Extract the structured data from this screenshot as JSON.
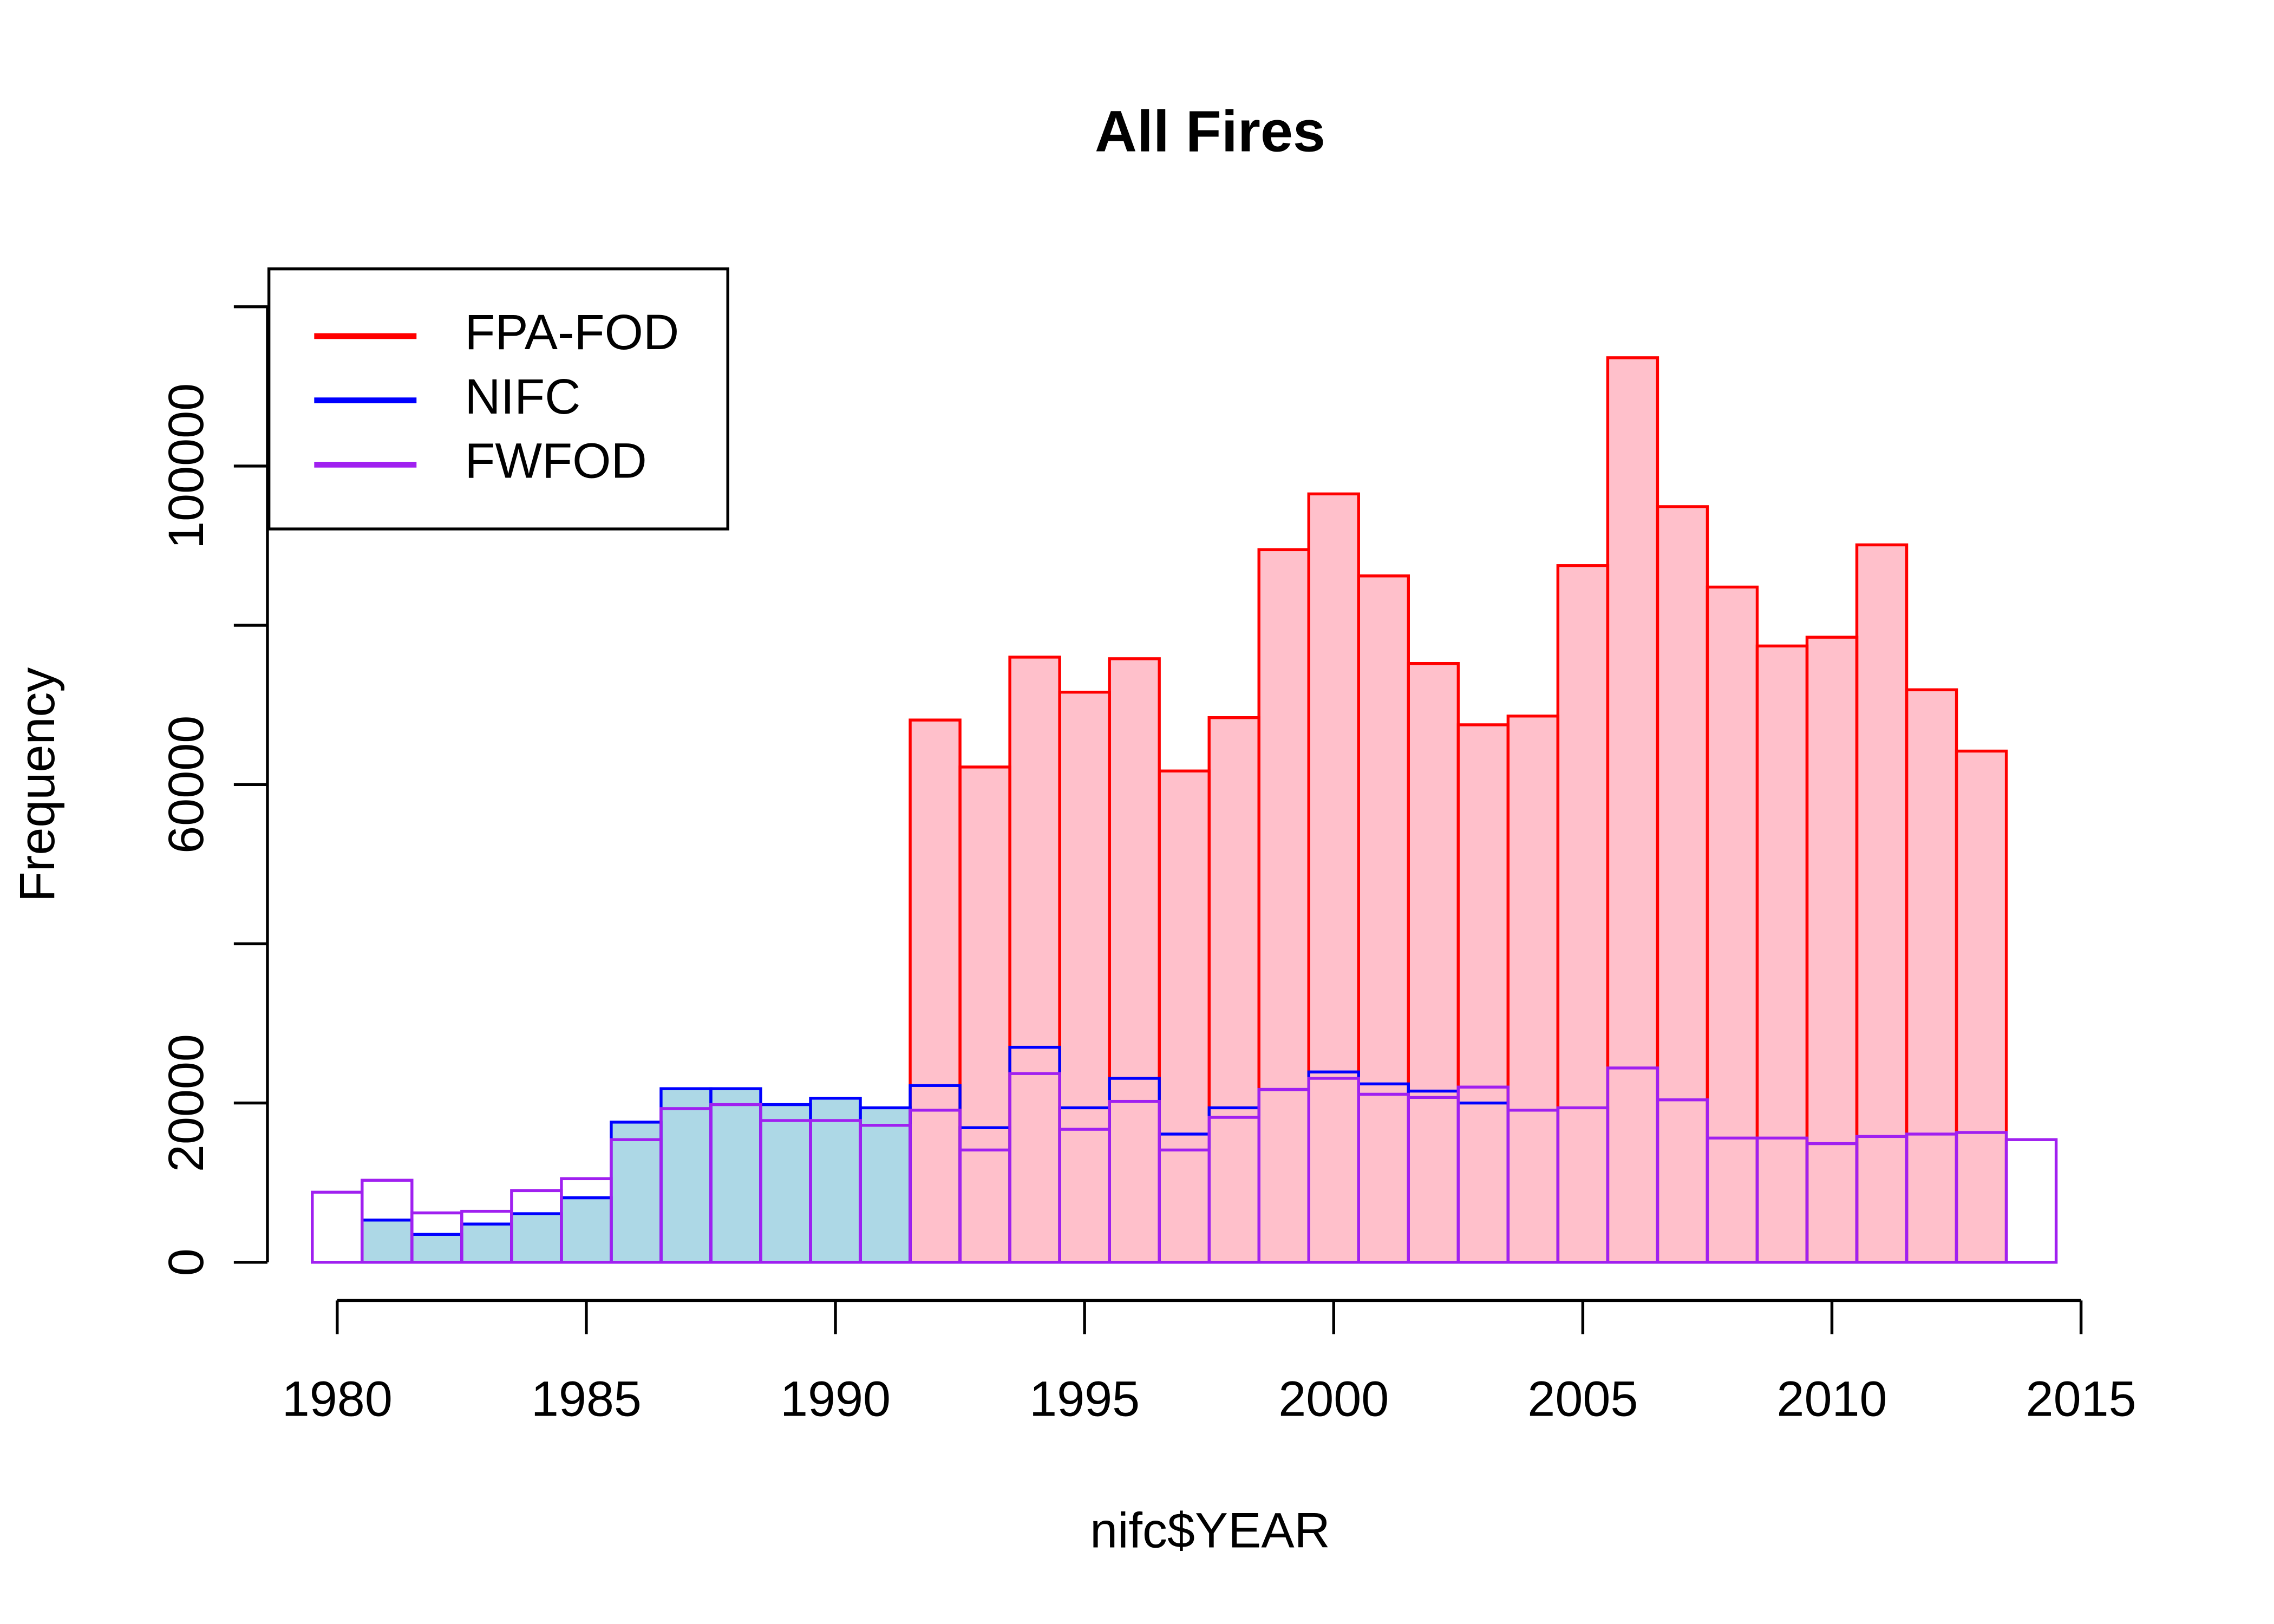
{
  "chart_data": {
    "type": "histogram",
    "title": "All Fires",
    "xlabel": "nifc$YEAR",
    "ylabel": "Frequency",
    "xlim": [
      1978.6,
      2016.4
    ],
    "ylim": [
      -4800,
      124800
    ],
    "xticks": [
      1980,
      1985,
      1990,
      1995,
      2000,
      2005,
      2010,
      2015
    ],
    "yticks": [
      0,
      20000,
      40000,
      60000,
      80000,
      100000,
      120000
    ],
    "legend": "top-left",
    "series": [
      {
        "name": "FWFOD",
        "color": "#a020f0",
        "fill": "#ffffff",
        "bins": [
          1979.5,
          1980.5,
          1981.5,
          1982.5,
          1983.5,
          1984.5,
          1985.5,
          1986.5,
          1987.5,
          1988.5,
          1989.5,
          1990.5,
          1991.5,
          1992.5,
          1993.5,
          1994.5,
          1995.5,
          1996.5,
          1997.5,
          1998.5,
          1999.5,
          2000.5,
          2001.5,
          2002.5,
          2003.5,
          2004.5,
          2005.5,
          2006.5,
          2007.5,
          2008.5,
          2009.5,
          2010.5,
          2011.5,
          2012.5,
          2013.5,
          2014.5
        ],
        "values": [
          8800,
          10300,
          6200,
          6400,
          9000,
          10500,
          15400,
          19300,
          19800,
          17800,
          17800,
          17200,
          19100,
          14100,
          23700,
          16700,
          20200,
          14100,
          18200,
          21700,
          23100,
          21100,
          20700,
          22000,
          19100,
          19400,
          24400,
          20400,
          15600,
          15600,
          14900,
          15800,
          16100,
          16300,
          15400
        ]
      },
      {
        "name": "NIFC",
        "color": "#0000ff",
        "fill": "#add8e6",
        "bins": [
          1979.5,
          1980.5,
          1981.5,
          1982.5,
          1983.5,
          1984.5,
          1985.5,
          1986.5,
          1987.5,
          1988.5,
          1989.5,
          1990.5,
          1991.5,
          1992.5,
          1993.5,
          1994.5,
          1995.5,
          1996.5,
          1997.5,
          1998.5,
          1999.5,
          2000.5,
          2001.5,
          2002.5,
          2003.5,
          2004.5,
          2005.5,
          2006.5,
          2007.5,
          2008.5,
          2009.5,
          2010.5,
          2011.5,
          2012.5,
          2013.5,
          2014.5
        ],
        "values": [
          0,
          5300,
          3500,
          4800,
          6100,
          8100,
          17600,
          21800,
          21800,
          19800,
          20600,
          19400,
          22200,
          16900,
          27000,
          19400,
          23100,
          16100,
          19400,
          21700,
          23900,
          22400,
          21500,
          20000,
          0,
          0,
          0,
          0,
          0,
          0,
          0,
          0,
          0,
          0,
          0
        ]
      },
      {
        "name": "FPA-FOD",
        "color": "#ff0000",
        "fill": "#ffc0cb",
        "bins": [
          1991.5,
          1992.5,
          1993.5,
          1994.5,
          1995.5,
          1996.5,
          1997.5,
          1998.5,
          1999.5,
          2000.5,
          2001.5,
          2002.5,
          2003.5,
          2004.5,
          2005.5,
          2006.5,
          2007.5,
          2008.5,
          2009.5,
          2010.5,
          2011.5,
          2012.5,
          2013.5
        ],
        "values": [
          68100,
          62200,
          76000,
          71600,
          75800,
          61700,
          68400,
          89500,
          96500,
          86200,
          75200,
          67500,
          68600,
          87500,
          113600,
          94900,
          84800,
          77400,
          78500,
          90100,
          71900,
          64200
        ]
      }
    ]
  }
}
